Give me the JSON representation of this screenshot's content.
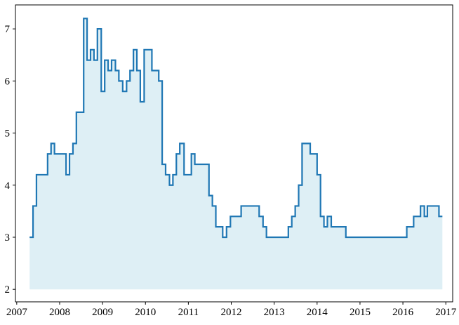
{
  "chart_data": {
    "type": "step",
    "x": [
      2007.3,
      2007.38,
      2007.46,
      2007.72,
      2007.8,
      2007.88,
      2008.15,
      2008.23,
      2008.31,
      2008.39,
      2008.56,
      2008.64,
      2008.72,
      2008.8,
      2008.88,
      2008.97,
      2009.05,
      2009.13,
      2009.21,
      2009.3,
      2009.38,
      2009.47,
      2009.56,
      2009.64,
      2009.72,
      2009.8,
      2009.88,
      2009.97,
      2010.15,
      2010.31,
      2010.39,
      2010.47,
      2010.56,
      2010.64,
      2010.72,
      2010.8,
      2010.9,
      2011.07,
      2011.15,
      2011.48,
      2011.56,
      2011.64,
      2011.8,
      2011.89,
      2011.98,
      2012.23,
      2012.65,
      2012.74,
      2012.82,
      2013.33,
      2013.41,
      2013.49,
      2013.57,
      2013.65,
      2013.84,
      2014.0,
      2014.08,
      2014.16,
      2014.24,
      2014.33,
      2014.67,
      2016.09,
      2016.25,
      2016.41,
      2016.5,
      2016.57,
      2016.84,
      2016.92
    ],
    "values": [
      3.0,
      3.6,
      4.2,
      4.6,
      4.8,
      4.6,
      4.2,
      4.6,
      4.8,
      5.4,
      7.2,
      6.4,
      6.6,
      6.4,
      7.0,
      5.8,
      6.4,
      6.2,
      6.4,
      6.2,
      6.0,
      5.8,
      6.0,
      6.2,
      6.6,
      6.2,
      5.6,
      6.6,
      6.2,
      6.0,
      4.4,
      4.2,
      4.0,
      4.2,
      4.6,
      4.8,
      4.2,
      4.6,
      4.4,
      3.8,
      3.6,
      3.2,
      3.0,
      3.2,
      3.4,
      3.6,
      3.4,
      3.2,
      3.0,
      3.2,
      3.4,
      3.6,
      4.0,
      4.8,
      4.6,
      4.2,
      3.4,
      3.2,
      3.4,
      3.2,
      3.0,
      3.2,
      3.4,
      3.6,
      3.4,
      3.6,
      3.4,
      3.4
    ],
    "color": "#1f77b4",
    "fill_color": "#add8e6",
    "fill_to": 2,
    "xlim": [
      2006.97,
      2017.16
    ],
    "ylim": [
      1.76,
      7.46
    ],
    "xticks": [
      2007,
      2008,
      2009,
      2010,
      2011,
      2012,
      2013,
      2014,
      2015,
      2016,
      2017
    ],
    "yticks": [
      2,
      3,
      4,
      5,
      6,
      7
    ]
  }
}
